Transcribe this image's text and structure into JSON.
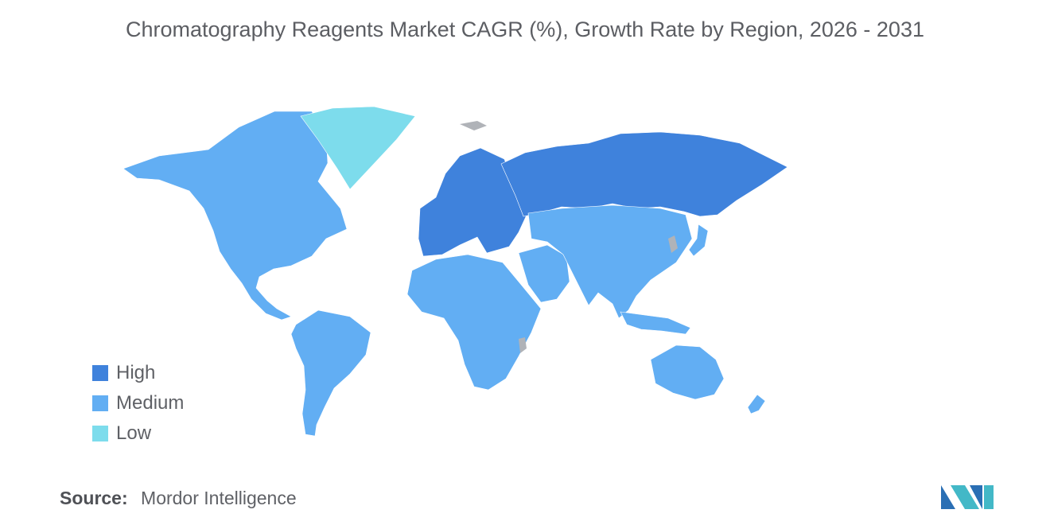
{
  "title": "Chromatography Reagents Market CAGR (%), Growth Rate by Region, 2026 - 2031",
  "legend": [
    {
      "label": "High",
      "color": "#3f82dc"
    },
    {
      "label": "Medium",
      "color": "#62aef3"
    },
    {
      "label": "Low",
      "color": "#7ddcec"
    }
  ],
  "regions": [
    {
      "name": "North America",
      "level": "Medium"
    },
    {
      "name": "South America",
      "level": "Medium"
    },
    {
      "name": "Greenland",
      "level": "Low"
    },
    {
      "name": "Europe",
      "level": "High"
    },
    {
      "name": "Russia",
      "level": "High"
    },
    {
      "name": "Africa",
      "level": "Medium"
    },
    {
      "name": "Middle East",
      "level": "Medium"
    },
    {
      "name": "Asia",
      "level": "Medium"
    },
    {
      "name": "Australia",
      "level": "Medium"
    },
    {
      "name": "New Zealand",
      "level": "Medium"
    }
  ],
  "no_data_color": "#b0b3b8",
  "source": {
    "label": "Source:",
    "value": "Mordor Intelligence"
  },
  "logo": {
    "colors": [
      "#2a6fb4",
      "#43b8c7"
    ]
  }
}
